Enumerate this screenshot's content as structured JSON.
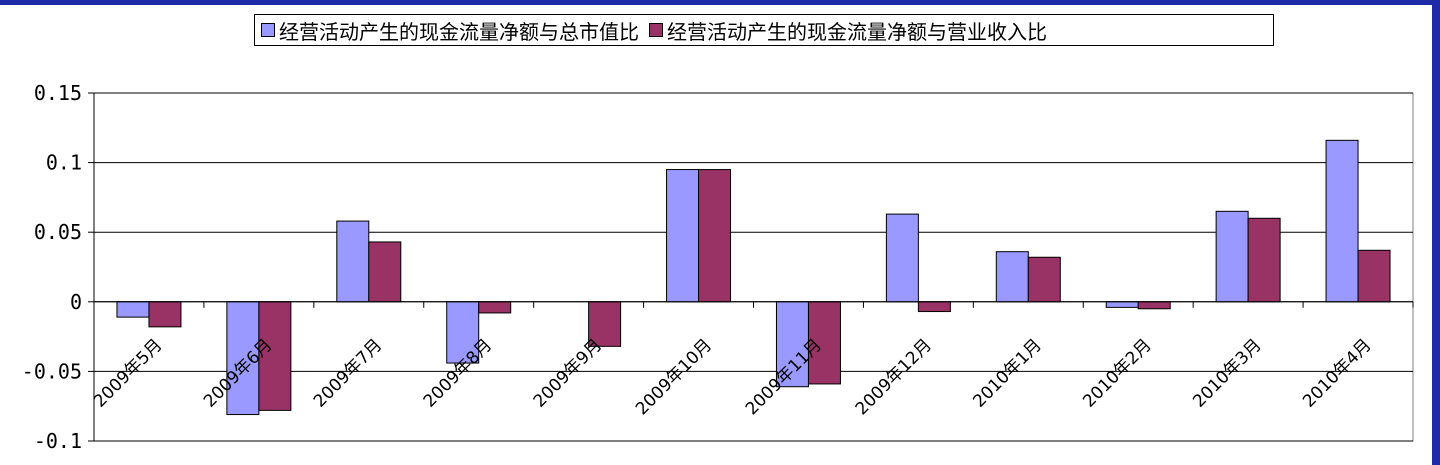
{
  "chart_data": {
    "type": "bar",
    "categories": [
      "2009年5月",
      "2009年6月",
      "2009年7月",
      "2009年8月",
      "2009年9月",
      "2009年10月",
      "2009年11月",
      "2009年12月",
      "2010年1月",
      "2010年2月",
      "2010年3月",
      "2010年4月"
    ],
    "series": [
      {
        "name": "经营活动产生的现金流量净额与总市值比",
        "color": "#9999ff",
        "values": [
          -0.011,
          -0.081,
          0.058,
          -0.044,
          0.0,
          0.095,
          -0.061,
          0.063,
          0.036,
          -0.004,
          0.065,
          0.116
        ]
      },
      {
        "name": "经营活动产生的现金流量净额与营业收入比",
        "color": "#993366",
        "values": [
          -0.018,
          -0.078,
          0.043,
          -0.008,
          -0.032,
          0.095,
          -0.059,
          -0.007,
          0.032,
          -0.005,
          0.06,
          0.037
        ]
      }
    ],
    "y_ticks": [
      "0.15",
      "0.1",
      "0.05",
      "0",
      "-0.05",
      "-0.1"
    ],
    "ylim": [
      -0.1,
      0.15
    ],
    "grid": true,
    "legend_position": "top"
  }
}
